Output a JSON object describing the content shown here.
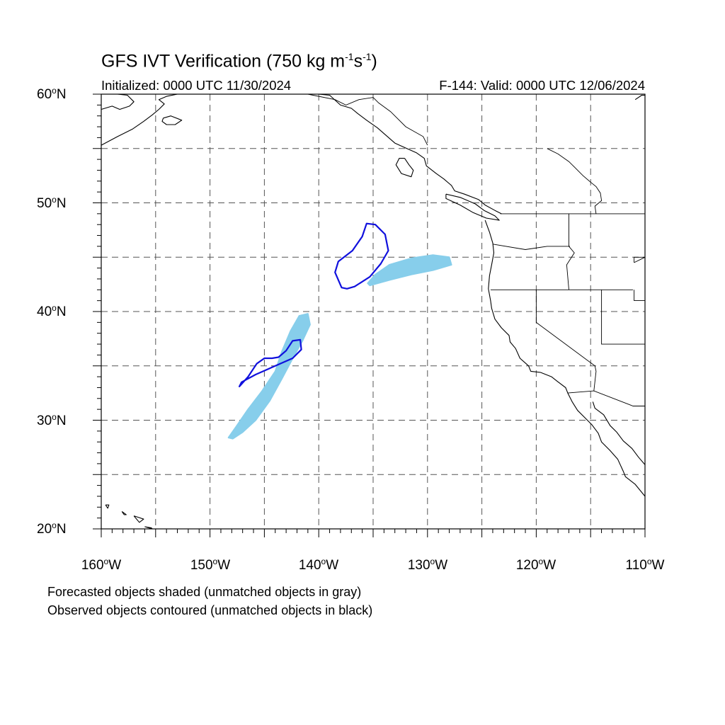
{
  "title": {
    "main": "GFS IVT Verification (750 kg m",
    "exp1": "-1",
    "mid": "s",
    "exp2": "-1",
    "end": ")"
  },
  "initialized": "Initialized: 0000 UTC 11/30/2024",
  "valid": "F-144: Valid: 0000 UTC 12/06/2024",
  "lat_labels": [
    {
      "num": "60",
      "hem": "N"
    },
    {
      "num": "50",
      "hem": "N"
    },
    {
      "num": "40",
      "hem": "N"
    },
    {
      "num": "30",
      "hem": "N"
    },
    {
      "num": "20",
      "hem": "N"
    }
  ],
  "lon_labels": [
    {
      "num": "160",
      "hem": "W"
    },
    {
      "num": "150",
      "hem": "W"
    },
    {
      "num": "140",
      "hem": "W"
    },
    {
      "num": "130",
      "hem": "W"
    },
    {
      "num": "120",
      "hem": "W"
    },
    {
      "num": "110",
      "hem": "W"
    }
  ],
  "degree_symbol": "o",
  "legend": {
    "forecast": "Forecasted objects shaded (unmatched objects in gray)",
    "observed": "Observed objects contoured (unmatched objects in black)"
  },
  "map": {
    "lon_range": [
      -160,
      -110
    ],
    "lat_range": [
      20,
      60
    ],
    "grid_spacing_deg": 5,
    "grid_style": "dashed",
    "colors": {
      "forecast_fill": "#87ceeb",
      "observed_contour": "#1010dd",
      "coastline": "#000000",
      "grid": "#555555"
    },
    "forecast_objects": [
      {
        "name": "forecast-object-north",
        "points": [
          [
            -135.5,
            42.6
          ],
          [
            -134.8,
            43.4
          ],
          [
            -133.5,
            44.3
          ],
          [
            -131.5,
            44.9
          ],
          [
            -129.5,
            45.2
          ],
          [
            -128,
            45.0
          ],
          [
            -127.8,
            44.3
          ],
          [
            -129.5,
            43.8
          ],
          [
            -131.5,
            43.4
          ],
          [
            -133.5,
            42.9
          ],
          [
            -135.3,
            42.4
          ]
        ]
      },
      {
        "name": "forecast-object-south",
        "points": [
          [
            -148.3,
            28.4
          ],
          [
            -147.6,
            29.4
          ],
          [
            -146.5,
            31
          ],
          [
            -145.2,
            32.7
          ],
          [
            -144,
            34.5
          ],
          [
            -143.4,
            36.3
          ],
          [
            -142.6,
            38.2
          ],
          [
            -141.8,
            39.6
          ],
          [
            -141,
            39.8
          ],
          [
            -140.8,
            38.8
          ],
          [
            -141.5,
            37.3
          ],
          [
            -142.5,
            35.5
          ],
          [
            -143.4,
            33.8
          ],
          [
            -144.5,
            31.8
          ],
          [
            -145.8,
            30
          ],
          [
            -147,
            28.9
          ],
          [
            -147.9,
            28.3
          ]
        ]
      }
    ],
    "observed_objects": [
      {
        "name": "observed-contour-north",
        "points": [
          [
            -137.9,
            42.2
          ],
          [
            -138.5,
            43.6
          ],
          [
            -138.2,
            44.6
          ],
          [
            -136.9,
            45.6
          ],
          [
            -136,
            46.9
          ],
          [
            -135.6,
            48.1
          ],
          [
            -134.8,
            48
          ],
          [
            -133.9,
            47.1
          ],
          [
            -133.6,
            45.6
          ],
          [
            -134.3,
            44.4
          ],
          [
            -135.3,
            43.2
          ],
          [
            -136.7,
            42.3
          ],
          [
            -137.4,
            42.1
          ]
        ]
      },
      {
        "name": "observed-contour-south",
        "points": [
          [
            -147.3,
            33.1
          ],
          [
            -146.5,
            34
          ],
          [
            -145.7,
            35.2
          ],
          [
            -145,
            35.7
          ],
          [
            -144.3,
            35.7
          ],
          [
            -143.7,
            35.8
          ],
          [
            -143,
            36.4
          ],
          [
            -142.4,
            37.3
          ],
          [
            -141.7,
            37.4
          ],
          [
            -141.6,
            36.5
          ],
          [
            -142.4,
            35.7
          ],
          [
            -144,
            35
          ],
          [
            -145.8,
            34.2
          ],
          [
            -147.1,
            33.5
          ]
        ]
      }
    ],
    "coastlines": [
      [
        [
          -160,
          55.3
        ],
        [
          -158.5,
          56.1
        ],
        [
          -157.1,
          56.8
        ],
        [
          -156.1,
          57.5
        ],
        [
          -155.3,
          58.1
        ],
        [
          -154.7,
          58.6
        ],
        [
          -154.2,
          59.1
        ],
        [
          -154.7,
          59.5
        ],
        [
          -154,
          59.8
        ],
        [
          -153,
          60
        ]
      ],
      [
        [
          -160,
          58.6
        ],
        [
          -159,
          58.9
        ],
        [
          -158.3,
          58.6
        ],
        [
          -157.4,
          58.9
        ],
        [
          -157,
          59.3
        ],
        [
          -157.6,
          59.9
        ],
        [
          -158.5,
          60
        ]
      ],
      [
        [
          -154.3,
          57.8
        ],
        [
          -153.6,
          58
        ],
        [
          -152.6,
          57.6
        ],
        [
          -153.2,
          57.2
        ],
        [
          -154,
          57.2
        ],
        [
          -154.4,
          57.5
        ],
        [
          -154.3,
          57.8
        ]
      ],
      [
        [
          -140,
          60
        ],
        [
          -139,
          59.9
        ],
        [
          -138,
          59
        ],
        [
          -137,
          58.7
        ],
        [
          -136.4,
          58.2
        ],
        [
          -135.6,
          57.6
        ],
        [
          -134.6,
          56.9
        ],
        [
          -133.8,
          56.2
        ],
        [
          -133,
          55.5
        ],
        [
          -131.9,
          55
        ],
        [
          -131,
          54.6
        ],
        [
          -130.3,
          54.1
        ],
        [
          -130.1,
          53.4
        ],
        [
          -129.2,
          52.7
        ],
        [
          -128.5,
          52.2
        ],
        [
          -127.8,
          51.6
        ],
        [
          -127.5,
          51.1
        ],
        [
          -126.6,
          50.8
        ],
        [
          -125.3,
          50.3
        ],
        [
          -124.7,
          49.8
        ],
        [
          -123.8,
          49.3
        ],
        [
          -123.2,
          49
        ]
      ],
      [
        [
          -132.1,
          54.1
        ],
        [
          -131.7,
          53.5
        ],
        [
          -131.3,
          53
        ],
        [
          -131.5,
          52.4
        ],
        [
          -132.4,
          52.7
        ],
        [
          -132.9,
          53.5
        ],
        [
          -132.6,
          54.1
        ],
        [
          -132.1,
          54.1
        ]
      ],
      [
        [
          -128.3,
          50.8
        ],
        [
          -127,
          50.5
        ],
        [
          -125.6,
          49.9
        ],
        [
          -124.8,
          49.3
        ],
        [
          -123.8,
          48.8
        ],
        [
          -123.4,
          48.4
        ],
        [
          -124.6,
          48.6
        ],
        [
          -125.8,
          49.1
        ],
        [
          -127,
          49.8
        ],
        [
          -128.3,
          50.4
        ],
        [
          -128.3,
          50.8
        ]
      ],
      [
        [
          -124.7,
          48.4
        ],
        [
          -124.3,
          47.3
        ],
        [
          -124,
          46.3
        ],
        [
          -123.9,
          45.4
        ],
        [
          -124.1,
          44.3
        ],
        [
          -124.3,
          43.3
        ],
        [
          -124.4,
          42.1
        ],
        [
          -124.2,
          41
        ],
        [
          -124.1,
          40.3
        ],
        [
          -123.8,
          39.3
        ],
        [
          -123.2,
          38.5
        ],
        [
          -122.5,
          37.8
        ],
        [
          -122.4,
          37.2
        ],
        [
          -121.9,
          36.6
        ],
        [
          -121.5,
          35.7
        ],
        [
          -120.7,
          35
        ],
        [
          -120.5,
          34.5
        ],
        [
          -119.6,
          34.4
        ],
        [
          -118.6,
          34
        ],
        [
          -118.1,
          33.6
        ],
        [
          -117.3,
          33
        ],
        [
          -117.1,
          32.5
        ],
        [
          -116.7,
          31.7
        ],
        [
          -116.2,
          30.9
        ],
        [
          -115.6,
          30.3
        ],
        [
          -114.9,
          29.6
        ],
        [
          -114.3,
          28.8
        ],
        [
          -114,
          28
        ],
        [
          -113.2,
          27.2
        ],
        [
          -112.5,
          26.4
        ],
        [
          -112,
          25.3
        ],
        [
          -111.8,
          24.8
        ],
        [
          -110.9,
          24.1
        ],
        [
          -110,
          23
        ]
      ],
      [
        [
          -114.8,
          31.7
        ],
        [
          -114.6,
          31.1
        ],
        [
          -113.8,
          30.5
        ],
        [
          -113.2,
          29.5
        ],
        [
          -112.6,
          28.9
        ],
        [
          -112,
          28.1
        ],
        [
          -111.2,
          27.4
        ],
        [
          -110.6,
          26.6
        ],
        [
          -110,
          25.9
        ]
      ],
      [
        [
          -110.9,
          59.5
        ],
        [
          -110.3,
          59.9
        ],
        [
          -110,
          59.9
        ]
      ],
      [
        [
          -159.6,
          22.2
        ],
        [
          -159.3,
          22.2
        ],
        [
          -159.4,
          21.9
        ],
        [
          -159.6,
          22.2
        ]
      ],
      [
        [
          -158.1,
          21.6
        ],
        [
          -157.7,
          21.3
        ],
        [
          -157.9,
          21.3
        ],
        [
          -158.1,
          21.6
        ]
      ],
      [
        [
          -157,
          21.2
        ],
        [
          -156.7,
          21.1
        ],
        [
          -156.1,
          20.9
        ],
        [
          -156.5,
          20.6
        ],
        [
          -157,
          21.2
        ]
      ],
      [
        [
          -156,
          20.2
        ],
        [
          -155.3,
          20
        ],
        [
          -155.4,
          20.1
        ],
        [
          -156,
          20.2
        ]
      ]
    ],
    "borders": [
      [
        [
          -141,
          60
        ],
        [
          -138.5,
          59.5
        ],
        [
          -137.5,
          59
        ],
        [
          -136.3,
          59.5
        ],
        [
          -135,
          59.7
        ],
        [
          -134.5,
          59.2
        ],
        [
          -133.4,
          58.4
        ],
        [
          -132,
          57
        ],
        [
          -130.4,
          56.1
        ],
        [
          -130,
          55.3
        ]
      ],
      [
        [
          -123.3,
          49
        ],
        [
          -110,
          49
        ]
      ],
      [
        [
          -124,
          46.2
        ],
        [
          -121,
          45.7
        ],
        [
          -119,
          46
        ],
        [
          -116.9,
          46
        ]
      ],
      [
        [
          -117,
          49
        ],
        [
          -117,
          46
        ],
        [
          -116.5,
          45.4
        ],
        [
          -117.2,
          44.3
        ],
        [
          -117,
          42
        ]
      ],
      [
        [
          -124.2,
          42
        ],
        [
          -111.1,
          42
        ]
      ],
      [
        [
          -120,
          42
        ],
        [
          -120,
          39
        ],
        [
          -114.6,
          35
        ],
        [
          -114.5,
          34.5
        ],
        [
          -114.7,
          32.7
        ]
      ],
      [
        [
          -117.1,
          32.5
        ],
        [
          -114.7,
          32.7
        ],
        [
          -111.1,
          31.3
        ],
        [
          -110,
          31.3
        ]
      ],
      [
        [
          -114,
          42
        ],
        [
          -114,
          37
        ],
        [
          -110,
          37
        ]
      ],
      [
        [
          -111,
          42
        ],
        [
          -111,
          41
        ],
        [
          -110,
          41
        ]
      ],
      [
        [
          -111,
          44.5
        ],
        [
          -110,
          45
        ],
        [
          -111,
          45
        ],
        [
          -111,
          44.5
        ]
      ],
      [
        [
          -119,
          55
        ],
        [
          -118,
          54.5
        ],
        [
          -117,
          53.8
        ],
        [
          -116.5,
          53.3
        ],
        [
          -115.7,
          52.5
        ],
        [
          -115,
          51.9
        ],
        [
          -114.5,
          51.5
        ],
        [
          -114.1,
          50.9
        ],
        [
          -114,
          50.2
        ],
        [
          -114.6,
          49.7
        ],
        [
          -114.5,
          49
        ]
      ]
    ]
  }
}
